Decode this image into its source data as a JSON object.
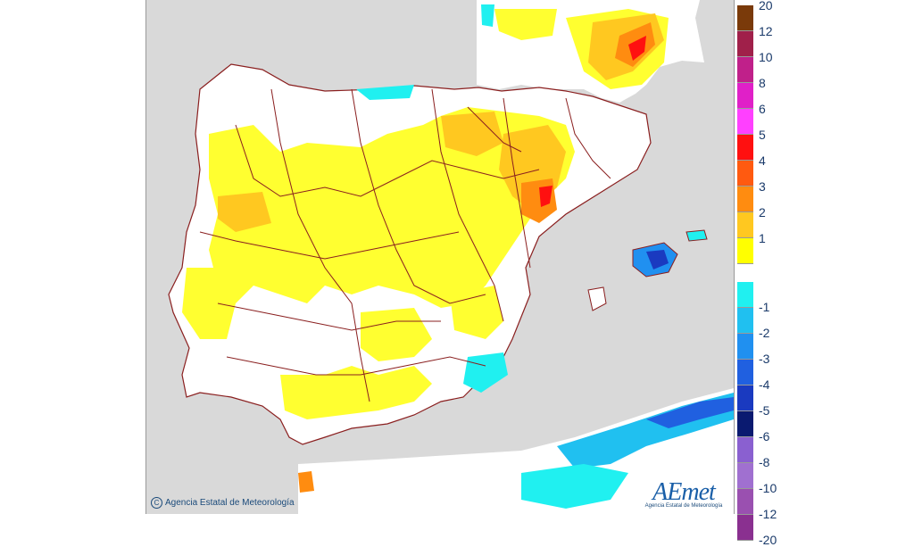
{
  "map": {
    "copyright_symbol": "C",
    "copyright_text": "Agencia Estatal de Meteorología",
    "logo_text": "AEmet",
    "logo_subtitle": "Agencia Estatal de Meteorología",
    "colors": {
      "sea": "#d9d9d9",
      "land_base": "#ffffff",
      "border": "#8a1f1f",
      "frame": "#999999"
    }
  },
  "legend": {
    "positive": [
      {
        "label": "20",
        "color": "#7a3a0a"
      },
      {
        "label": "12",
        "color": "#a0204a"
      },
      {
        "label": "10",
        "color": "#c0208a"
      },
      {
        "label": "8",
        "color": "#e020c8"
      },
      {
        "label": "6",
        "color": "#ff40ff"
      },
      {
        "label": "5",
        "color": "#ff1010"
      },
      {
        "label": "4",
        "color": "#ff5a10"
      },
      {
        "label": "3",
        "color": "#ff8c10"
      },
      {
        "label": "2",
        "color": "#ffc820"
      },
      {
        "label": "1",
        "color": "#ffff00"
      }
    ],
    "negative": [
      {
        "label": "-1",
        "color": "#20f0f0"
      },
      {
        "label": "-2",
        "color": "#20c0f0"
      },
      {
        "label": "-3",
        "color": "#2090f0"
      },
      {
        "label": "-4",
        "color": "#2060e0"
      },
      {
        "label": "-5",
        "color": "#1a3ac0"
      },
      {
        "label": "-6",
        "color": "#0a1a70"
      },
      {
        "label": "-8",
        "color": "#8a60d0"
      },
      {
        "label": "-10",
        "color": "#a070d0"
      },
      {
        "label": "-12",
        "color": "#9a50b0"
      },
      {
        "label": "-20",
        "color": "#8a3090"
      }
    ]
  }
}
